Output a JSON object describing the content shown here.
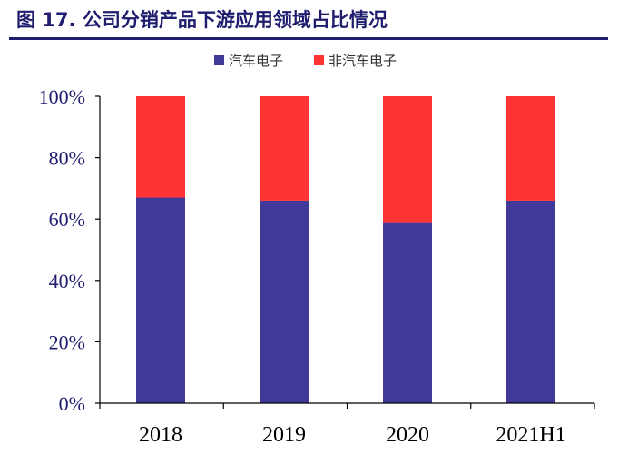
{
  "title": "图 17. 公司分销产品下游应用领域占比情况",
  "chart_data": {
    "type": "bar",
    "stacked": true,
    "categories": [
      "2018",
      "2019",
      "2020",
      "2021H1"
    ],
    "series": [
      {
        "name": "汽车电子",
        "color": "#40399a",
        "values": [
          67,
          66,
          59,
          66
        ]
      },
      {
        "name": "非汽车电子",
        "color": "#fe3333",
        "values": [
          33,
          34,
          41,
          34
        ]
      }
    ],
    "ylim": [
      0,
      100
    ],
    "yticks": [
      "0%",
      "20%",
      "40%",
      "60%",
      "80%",
      "100%"
    ],
    "legend_position": "top-center",
    "grid": false
  }
}
